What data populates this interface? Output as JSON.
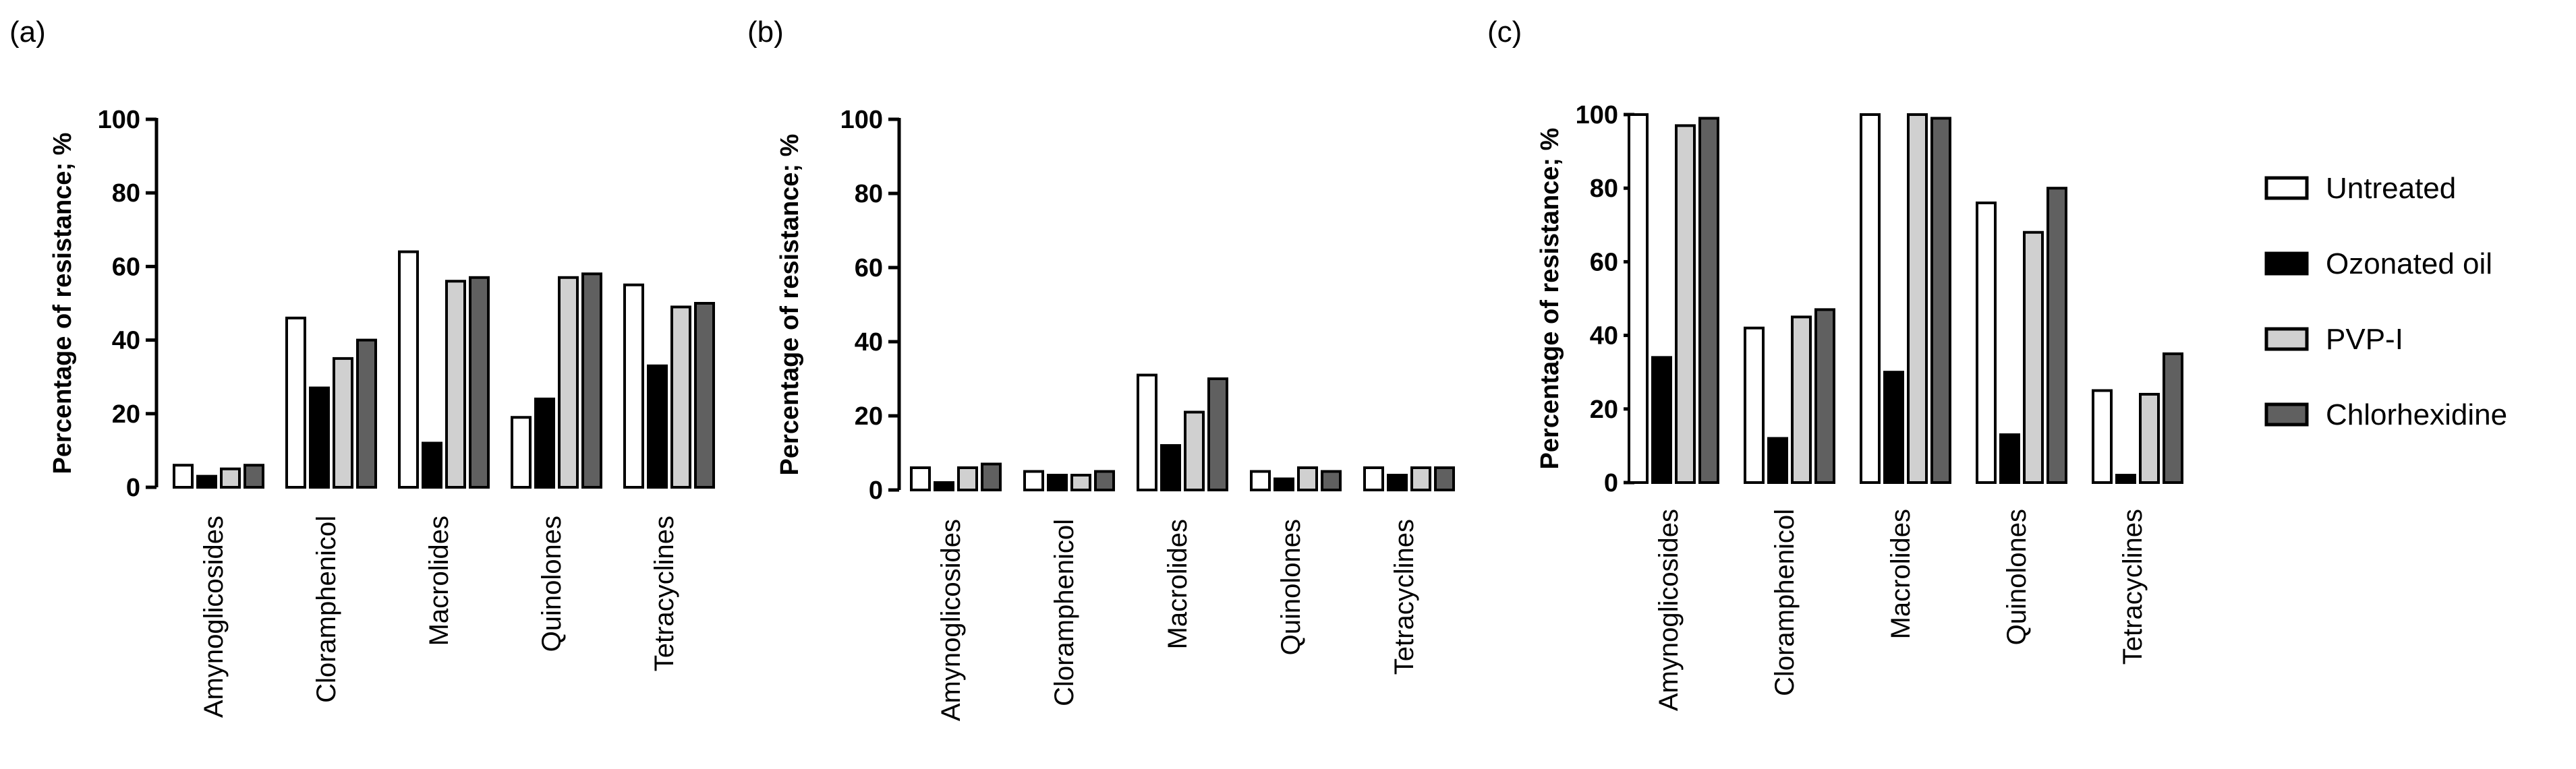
{
  "figure": {
    "panels": [
      "(a)",
      "(b)",
      "(c)"
    ],
    "legend": [
      {
        "label": "Untreated",
        "color": "#ffffff"
      },
      {
        "label": "Ozonated oil",
        "color": "#000000"
      },
      {
        "label": "PVP-I",
        "color": "#d0d0d0"
      },
      {
        "label": "Chlorhexidine",
        "color": "#606060"
      }
    ]
  },
  "chart_data": [
    {
      "type": "bar",
      "panel": "(a)",
      "ylabel": "Percentage of resistance; %",
      "ylim": [
        0,
        100
      ],
      "yticks": [
        0,
        20,
        40,
        60,
        80,
        100
      ],
      "categories": [
        "Amynoglicosides",
        "Cloramphenicol",
        "Macrolides",
        "Quinolones",
        "Tetracyclines"
      ],
      "series": [
        {
          "name": "Untreated",
          "values": [
            6,
            46,
            64,
            19,
            55
          ]
        },
        {
          "name": "Ozonated oil",
          "values": [
            3,
            27,
            12,
            24,
            33
          ]
        },
        {
          "name": "PVP-I",
          "values": [
            5,
            35,
            56,
            57,
            49
          ]
        },
        {
          "name": "Chlorhexidine",
          "values": [
            6,
            40,
            57,
            58,
            50
          ]
        }
      ]
    },
    {
      "type": "bar",
      "panel": "(b)",
      "ylabel": "Percentage of resistance; %",
      "ylim": [
        0,
        100
      ],
      "yticks": [
        0,
        20,
        40,
        60,
        80,
        100
      ],
      "categories": [
        "Amynoglicosides",
        "Cloramphenicol",
        "Macrolides",
        "Quinolones",
        "Tetracyclines"
      ],
      "series": [
        {
          "name": "Untreated",
          "values": [
            6,
            5,
            31,
            5,
            6
          ]
        },
        {
          "name": "Ozonated oil",
          "values": [
            2,
            4,
            12,
            3,
            4
          ]
        },
        {
          "name": "PVP-I",
          "values": [
            6,
            4,
            21,
            6,
            6
          ]
        },
        {
          "name": "Chlorhexidine",
          "values": [
            7,
            5,
            30,
            5,
            6
          ]
        }
      ]
    },
    {
      "type": "bar",
      "panel": "(c)",
      "ylabel": "Percentage of resistance; %",
      "ylim": [
        0,
        100
      ],
      "yticks": [
        0,
        20,
        40,
        60,
        80,
        100
      ],
      "categories": [
        "Amynoglicosides",
        "Cloramphenicol",
        "Macrolides",
        "Quinolones",
        "Tetracyclines"
      ],
      "series": [
        {
          "name": "Untreated",
          "values": [
            100,
            42,
            100,
            76,
            25
          ]
        },
        {
          "name": "Ozonated oil",
          "values": [
            34,
            12,
            30,
            13,
            2
          ]
        },
        {
          "name": "PVP-I",
          "values": [
            97,
            45,
            100,
            68,
            24
          ]
        },
        {
          "name": "Chlorhexidine",
          "values": [
            99,
            47,
            99,
            80,
            35
          ]
        }
      ]
    }
  ]
}
